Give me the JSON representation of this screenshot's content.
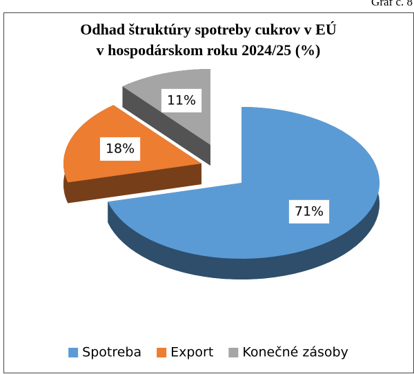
{
  "caption": "Graf č. 8",
  "chart_data": {
    "type": "pie3d",
    "title": [
      "Odhad štruktúry spotreby cukrov v EÚ",
      "v hospodárskom roku 2024/25 (%)"
    ],
    "categories": [
      "Spotreba",
      "Export",
      "Konečné zásoby"
    ],
    "values": [
      71,
      18,
      11
    ],
    "value_labels": [
      "71%",
      "18%",
      "11%"
    ],
    "colors": [
      "#5b9bd5",
      "#ed7d31",
      "#a5a5a5"
    ],
    "legend": "bottom"
  }
}
